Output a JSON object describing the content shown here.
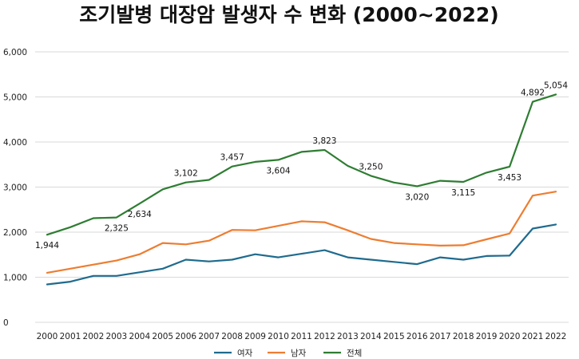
{
  "chart_data": {
    "type": "line",
    "title": "조기발병 대장암 발생자 수 변화 (2000~2022)",
    "xlabel": "",
    "ylabel": "",
    "x": [
      "2000",
      "2001",
      "2002",
      "2003",
      "2004",
      "2005",
      "2006",
      "2007",
      "2008",
      "2009",
      "2010",
      "2011",
      "2012",
      "2013",
      "2014",
      "2015",
      "2016",
      "2017",
      "2018",
      "2019",
      "2020",
      "2021",
      "2022"
    ],
    "ylim": [
      0,
      6000
    ],
    "yticks": [
      0,
      1000,
      2000,
      3000,
      4000,
      5000,
      6000
    ],
    "ytick_labels": [
      "0",
      "1,000",
      "2,000",
      "3,000",
      "4,000",
      "5,000",
      "6,000"
    ],
    "grid": true,
    "legend_position": "bottom",
    "series": [
      {
        "name": "여자",
        "color": "#1f6b8e",
        "values": [
          840,
          900,
          1030,
          1030,
          1110,
          1190,
          1390,
          1350,
          1390,
          1510,
          1440,
          1520,
          1600,
          1440,
          1390,
          1340,
          1290,
          1440,
          1390,
          1470,
          1480,
          2080,
          2170
        ]
      },
      {
        "name": "남자",
        "color": "#ed7d31",
        "values": [
          1100,
          1190,
          1280,
          1370,
          1510,
          1760,
          1730,
          1810,
          2050,
          2040,
          2140,
          2240,
          2220,
          2040,
          1850,
          1760,
          1730,
          1700,
          1710,
          1840,
          1970,
          2810,
          2900
        ]
      },
      {
        "name": "전체",
        "color": "#2e7d32",
        "values": [
          1944,
          2110,
          2310,
          2325,
          2634,
          2950,
          3102,
          3160,
          3457,
          3560,
          3604,
          3780,
          3823,
          3470,
          3250,
          3100,
          3020,
          3140,
          3115,
          3320,
          3453,
          4892,
          5054
        ]
      }
    ],
    "data_labels": [
      {
        "series": 2,
        "x": "2000",
        "text": "1,944",
        "pos": "below"
      },
      {
        "series": 2,
        "x": "2003",
        "text": "2,325",
        "pos": "below"
      },
      {
        "series": 2,
        "x": "2004",
        "text": "2,634",
        "pos": "below"
      },
      {
        "series": 2,
        "x": "2006",
        "text": "3,102",
        "pos": "above"
      },
      {
        "series": 2,
        "x": "2008",
        "text": "3,457",
        "pos": "above"
      },
      {
        "series": 2,
        "x": "2010",
        "text": "3,604",
        "pos": "below"
      },
      {
        "series": 2,
        "x": "2012",
        "text": "3,823",
        "pos": "above"
      },
      {
        "series": 2,
        "x": "2014",
        "text": "3,250",
        "pos": "above"
      },
      {
        "series": 2,
        "x": "2016",
        "text": "3,020",
        "pos": "below"
      },
      {
        "series": 2,
        "x": "2018",
        "text": "3,115",
        "pos": "below"
      },
      {
        "series": 2,
        "x": "2020",
        "text": "3,453",
        "pos": "below"
      },
      {
        "series": 2,
        "x": "2021",
        "text": "4,892",
        "pos": "above"
      },
      {
        "series": 2,
        "x": "2022",
        "text": "5,054",
        "pos": "above"
      }
    ]
  }
}
